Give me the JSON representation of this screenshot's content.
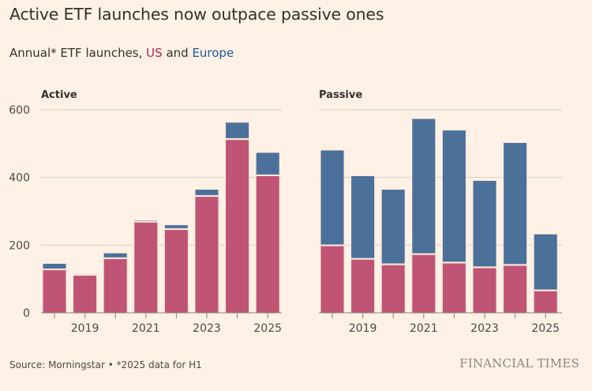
{
  "header": {
    "title": "Active ETF launches now outpace passive ones",
    "subtitle_prefix": "Annual* ETF launches, ",
    "subtitle_us": "US",
    "subtitle_and": " and ",
    "subtitle_eu": "Europe"
  },
  "footer": {
    "source": "Source: Morningstar • *2025 data for H1",
    "brand": "FINANCIAL TIMES"
  },
  "colors": {
    "us": "#C05474",
    "europe": "#4B7099",
    "background": "#FFF1E5"
  },
  "chart_data": [
    {
      "type": "bar",
      "stacked": true,
      "title": "Active",
      "categories": [
        "2018",
        "2019",
        "2020",
        "2021",
        "2022",
        "2023",
        "2024",
        "2025"
      ],
      "tick_labels": [
        "2019",
        "2021",
        "2023",
        "2025"
      ],
      "y_ticks": [
        0,
        200,
        400,
        600
      ],
      "ylim": [
        0,
        600
      ],
      "grid": true,
      "series": [
        {
          "name": "US",
          "color": "#C05474",
          "values": [
            127,
            111,
            160,
            268,
            246,
            344,
            512,
            405
          ]
        },
        {
          "name": "Europe",
          "color": "#4B7099",
          "values": [
            19,
            4,
            17,
            6,
            14,
            21,
            51,
            69
          ]
        }
      ],
      "xlabel": "",
      "ylabel": ""
    },
    {
      "type": "bar",
      "stacked": true,
      "title": "Passive",
      "categories": [
        "2018",
        "2019",
        "2020",
        "2021",
        "2022",
        "2023",
        "2024",
        "2025"
      ],
      "tick_labels": [
        "2019",
        "2021",
        "2023",
        "2025"
      ],
      "y_ticks": [
        0,
        200,
        400,
        600
      ],
      "ylim": [
        0,
        600
      ],
      "grid": true,
      "series": [
        {
          "name": "US",
          "color": "#C05474",
          "values": [
            198,
            158,
            142,
            172,
            147,
            133,
            140,
            65
          ]
        },
        {
          "name": "Europe",
          "color": "#4B7099",
          "values": [
            283,
            247,
            223,
            402,
            393,
            258,
            363,
            168
          ]
        }
      ],
      "xlabel": "",
      "ylabel": ""
    }
  ]
}
